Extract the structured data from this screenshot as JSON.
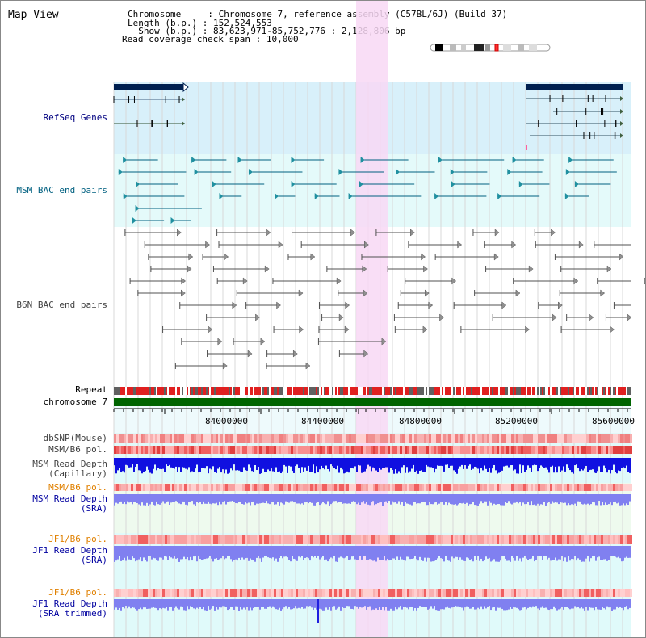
{
  "title": "Map View",
  "info": {
    "chromosome_key": "Chromosome    ",
    "chromosome_val": "Chromosome 7, reference assembly (C57BL/6J) (Build 37)",
    "length_key": "Length (b.p.)",
    "length_val": "152,524,553",
    "show_key": "  Show (b.p.)",
    "show_val": "83,623,971-85,752,776 : 2,128,806 bp",
    "span_key": "Read coverage check span",
    "span_val": "10,000"
  },
  "tracks": {
    "refseq": "RefSeq Genes",
    "msm_bac": "MSM BAC end pairs",
    "b6n_bac": "B6N BAC end pairs",
    "repeat": "Repeat",
    "chromosome": "chromosome 7",
    "dbsnp": "dbSNP(Mouse)",
    "msm_b6_pol": "MSM/B6 pol.",
    "msm_depth_cap_1": "MSM Read Depth",
    "msm_depth_cap_2": "(Capillary)",
    "msm_b6_pol2": "MSM/B6 pol.",
    "msm_depth_sra_1": "MSM Read Depth",
    "msm_depth_sra_2": "(SRA)",
    "jf1_b6_pol": "JF1/B6 pol.",
    "jf1_depth_sra_1": "JF1 Read Depth",
    "jf1_depth_sra_2": "(SRA)",
    "jf1_b6_pol2": "JF1/B6 pol.",
    "jf1_depth_trim_1": "JF1 Read Depth",
    "jf1_depth_trim_2": "(SRA trimmed)"
  },
  "axis": {
    "ticks": [
      "84000000",
      "84400000",
      "84800000",
      "85200000",
      "85600000"
    ]
  },
  "colors": {
    "refseq_label": "#000080",
    "msm_label": "#006080",
    "b6n_label": "#404040",
    "orange_label": "#e08000",
    "blue_label": "#0000a0",
    "chromosome_bar": "#006400",
    "highlight": "#f8d8f4"
  }
}
